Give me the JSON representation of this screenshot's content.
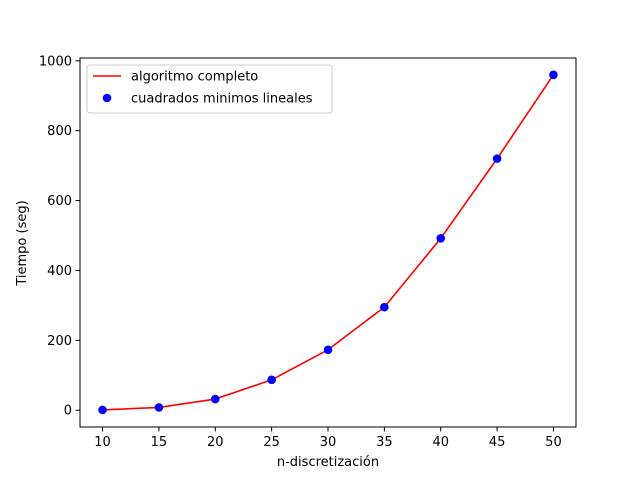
{
  "chart_data": {
    "type": "line",
    "title": "",
    "xlabel": "n-discretización",
    "ylabel": "Tiempo (seg)",
    "xlim": [
      8,
      52
    ],
    "ylim": [
      -48,
      1008
    ],
    "x_ticks": [
      10,
      15,
      20,
      25,
      30,
      35,
      40,
      45,
      50
    ],
    "y_ticks": [
      0,
      200,
      400,
      600,
      800,
      1000
    ],
    "grid": false,
    "legend_position": "upper-left",
    "x": [
      10,
      15,
      20,
      25,
      30,
      35,
      40,
      45,
      50
    ],
    "series": [
      {
        "name": "algoritmo completo",
        "kind": "line",
        "color": "#ff0000",
        "values": [
          1,
          8,
          32,
          87,
          173,
          295,
          492,
          720,
          960
        ]
      },
      {
        "name": "cuadrados minimos lineales",
        "kind": "scatter",
        "color": "#0000ff",
        "values": [
          1,
          8,
          32,
          87,
          173,
          295,
          492,
          720,
          960
        ]
      }
    ]
  }
}
